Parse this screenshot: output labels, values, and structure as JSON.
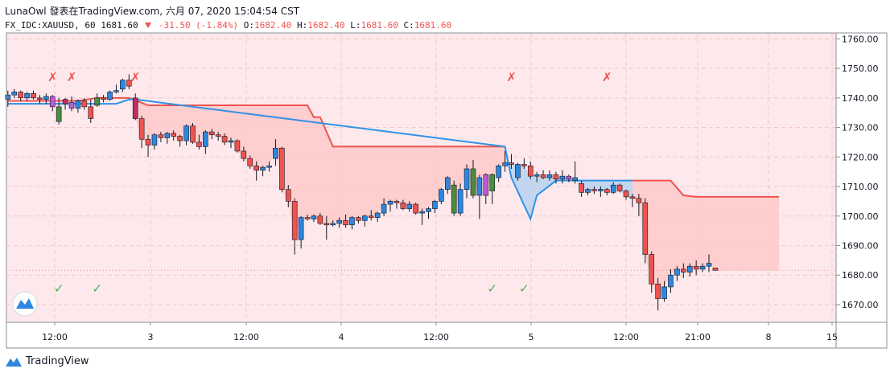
{
  "header": {
    "line1": "LunaOwl 發表在TradingView.com, 六月 07, 2020 15:04:54 CST",
    "symbol": "FX_IDC:XAUUSD, 60",
    "last": "1681.60",
    "change": "-31.50 (-1.84%)",
    "o_label": "O:",
    "o_value": "1682.40",
    "h_label": "H:",
    "h_value": "1682.40",
    "l_label": "L:",
    "l_value": "1681.60",
    "c_label": "C:",
    "c_value": "1681.60"
  },
  "footer": {
    "brand": "TradingView"
  },
  "colors": {
    "up": "#2d87e0",
    "down": "#ef5350",
    "signal_up": "#4c8c40",
    "signal_down": "#c22d62",
    "purple": "#c05ad4",
    "cloud_bear": "#ffc9c9",
    "cloud_bull": "#b8d2f0",
    "line_red": "#ef5350",
    "line_blue": "#2f92e6",
    "bg": "#fde9ec"
  },
  "chart_data": {
    "type": "candlestick",
    "ylim": [
      1664,
      1762
    ],
    "y_ticks": [
      "1760.00",
      "1750.00",
      "1740.00",
      "1730.00",
      "1720.00",
      "1710.00",
      "1700.00",
      "1690.00",
      "1680.00",
      "1670.00"
    ],
    "x_ticks": [
      "12:00",
      "3",
      "12:00",
      "4",
      "12:00",
      "5",
      "12:00",
      "21:00",
      "8",
      "15"
    ],
    "candles": [
      [
        1739.5,
        1742.5,
        1737.0,
        1741.0
      ],
      [
        1741.0,
        1743.0,
        1740.0,
        1742.0
      ],
      [
        1742.0,
        1742.5,
        1739.0,
        1740.0
      ],
      [
        1740.0,
        1742.0,
        1739.0,
        1741.5
      ],
      [
        1741.5,
        1742.5,
        1739.5,
        1740.0
      ],
      [
        1740.0,
        1741.0,
        1738.0,
        1739.5
      ],
      [
        1739.5,
        1741.5,
        1738.0,
        1740.5
      ],
      [
        1740.5,
        1741.0,
        1735.5,
        1737.0
      ],
      [
        1737.0,
        1740.0,
        1731.0,
        1732.0
      ],
      [
        1738.0,
        1740.0,
        1736.0,
        1739.5
      ],
      [
        1738.5,
        1740.5,
        1735.5,
        1736.5
      ],
      [
        1736.5,
        1739.5,
        1735.0,
        1739.0
      ],
      [
        1739.0,
        1740.0,
        1736.0,
        1737.0
      ],
      [
        1737.0,
        1739.5,
        1731.5,
        1733.0
      ],
      [
        1737.5,
        1741.5,
        1737.0,
        1740.0
      ],
      [
        1740.0,
        1741.0,
        1738.5,
        1739.5
      ],
      [
        1739.5,
        1742.5,
        1739.0,
        1742.0
      ],
      [
        1742.0,
        1744.5,
        1741.5,
        1742.5
      ],
      [
        1743.0,
        1746.5,
        1742.0,
        1746.0
      ],
      [
        1746.0,
        1748.0,
        1743.0,
        1744.0
      ],
      [
        1740.0,
        1741.5,
        1732.5,
        1733.0
      ],
      [
        1733.0,
        1734.0,
        1723.0,
        1726.0
      ],
      [
        1726.0,
        1727.5,
        1720.0,
        1724.0
      ],
      [
        1724.0,
        1728.0,
        1722.5,
        1727.5
      ],
      [
        1727.5,
        1728.5,
        1725.0,
        1726.5
      ],
      [
        1726.5,
        1728.5,
        1724.5,
        1728.0
      ],
      [
        1728.0,
        1729.0,
        1725.5,
        1727.0
      ],
      [
        1727.0,
        1727.5,
        1723.5,
        1725.5
      ],
      [
        1725.5,
        1731.0,
        1724.0,
        1730.5
      ],
      [
        1730.5,
        1731.5,
        1724.5,
        1725.0
      ],
      [
        1725.0,
        1727.5,
        1722.5,
        1723.5
      ],
      [
        1723.5,
        1729.0,
        1721.0,
        1728.5
      ],
      [
        1728.5,
        1729.5,
        1726.0,
        1727.5
      ],
      [
        1727.5,
        1728.5,
        1725.5,
        1727.0
      ],
      [
        1727.0,
        1728.0,
        1724.0,
        1725.0
      ],
      [
        1725.0,
        1726.5,
        1723.0,
        1725.5
      ],
      [
        1725.5,
        1726.0,
        1721.5,
        1722.0
      ],
      [
        1722.0,
        1723.5,
        1718.5,
        1719.5
      ],
      [
        1719.5,
        1720.5,
        1716.0,
        1717.0
      ],
      [
        1717.0,
        1718.5,
        1712.0,
        1715.5
      ],
      [
        1715.5,
        1717.0,
        1713.5,
        1716.5
      ],
      [
        1716.5,
        1718.5,
        1715.0,
        1717.0
      ],
      [
        1719.5,
        1726.0,
        1717.0,
        1723.0
      ],
      [
        1723.0,
        1723.5,
        1708.0,
        1709.0
      ],
      [
        1709.0,
        1710.5,
        1703.0,
        1705.0
      ],
      [
        1705.0,
        1706.0,
        1687.0,
        1692.0
      ],
      [
        1692.0,
        1700.0,
        1689.0,
        1699.5
      ],
      [
        1699.5,
        1700.5,
        1698.5,
        1699.0
      ],
      [
        1699.0,
        1700.5,
        1698.0,
        1700.0
      ],
      [
        1700.0,
        1701.0,
        1697.0,
        1697.5
      ],
      [
        1697.5,
        1700.0,
        1692.0,
        1697.0
      ],
      [
        1697.0,
        1698.5,
        1696.5,
        1697.5
      ],
      [
        1697.5,
        1699.5,
        1696.0,
        1698.5
      ],
      [
        1698.5,
        1700.5,
        1696.0,
        1697.0
      ],
      [
        1697.0,
        1700.0,
        1695.5,
        1699.5
      ],
      [
        1699.5,
        1700.0,
        1697.5,
        1698.5
      ],
      [
        1698.5,
        1700.5,
        1696.5,
        1700.0
      ],
      [
        1700.0,
        1702.0,
        1698.5,
        1699.5
      ],
      [
        1699.5,
        1701.5,
        1698.0,
        1701.0
      ],
      [
        1701.0,
        1706.0,
        1700.0,
        1704.0
      ],
      [
        1704.0,
        1705.5,
        1701.5,
        1705.0
      ],
      [
        1705.0,
        1705.5,
        1702.5,
        1704.5
      ],
      [
        1704.5,
        1705.5,
        1702.0,
        1702.5
      ],
      [
        1702.5,
        1705.0,
        1701.5,
        1704.0
      ],
      [
        1704.0,
        1704.5,
        1700.5,
        1701.0
      ],
      [
        1701.0,
        1702.5,
        1697.0,
        1701.5
      ],
      [
        1701.5,
        1703.0,
        1699.0,
        1702.5
      ],
      [
        1702.5,
        1705.5,
        1701.0,
        1705.0
      ],
      [
        1705.0,
        1709.5,
        1704.0,
        1709.0
      ],
      [
        1709.0,
        1713.5,
        1707.5,
        1713.0
      ],
      [
        1710.5,
        1712.0,
        1700.0,
        1701.0
      ],
      [
        1701.0,
        1711.0,
        1700.0,
        1709.0
      ],
      [
        1709.0,
        1717.5,
        1706.0,
        1716.0
      ],
      [
        1716.0,
        1719.0,
        1706.0,
        1707.0
      ],
      [
        1707.0,
        1714.0,
        1699.0,
        1713.0
      ],
      [
        1707.0,
        1714.5,
        1704.0,
        1714.0
      ],
      [
        1714.0,
        1714.5,
        1704.0,
        1708.5
      ],
      [
        1713.0,
        1717.5,
        1711.5,
        1717.0
      ],
      [
        1717.0,
        1722.0,
        1715.0,
        1718.0
      ],
      [
        1718.0,
        1721.0,
        1716.0,
        1717.5
      ],
      [
        1713.0,
        1718.0,
        1712.0,
        1717.5
      ],
      [
        1717.5,
        1719.5,
        1716.0,
        1717.0
      ],
      [
        1717.0,
        1718.5,
        1712.5,
        1713.5
      ],
      [
        1713.5,
        1715.0,
        1711.5,
        1714.0
      ],
      [
        1714.0,
        1715.5,
        1712.5,
        1713.0
      ],
      [
        1713.0,
        1715.5,
        1712.0,
        1714.0
      ],
      [
        1714.0,
        1715.0,
        1711.0,
        1712.5
      ],
      [
        1712.5,
        1715.5,
        1711.0,
        1713.5
      ],
      [
        1713.5,
        1714.0,
        1711.5,
        1712.5
      ],
      [
        1712.0,
        1718.5,
        1711.0,
        1713.0
      ],
      [
        1711.0,
        1712.0,
        1706.5,
        1708.0
      ],
      [
        1708.0,
        1709.5,
        1707.0,
        1709.0
      ],
      [
        1709.0,
        1710.0,
        1707.5,
        1708.5
      ],
      [
        1708.5,
        1710.0,
        1706.5,
        1709.0
      ],
      [
        1709.0,
        1709.5,
        1707.0,
        1708.0
      ],
      [
        1708.0,
        1711.5,
        1707.5,
        1710.5
      ],
      [
        1710.5,
        1711.0,
        1708.0,
        1708.5
      ],
      [
        1708.5,
        1709.0,
        1705.5,
        1706.5
      ],
      [
        1706.5,
        1707.5,
        1703.0,
        1706.0
      ],
      [
        1706.0,
        1707.5,
        1700.0,
        1704.5
      ],
      [
        1704.5,
        1706.0,
        1684.0,
        1687.0
      ],
      [
        1687.0,
        1688.0,
        1674.0,
        1677.0
      ],
      [
        1677.0,
        1679.0,
        1668.0,
        1672.0
      ],
      [
        1672.0,
        1678.0,
        1671.0,
        1676.0
      ],
      [
        1676.0,
        1682.0,
        1674.0,
        1680.0
      ],
      [
        1680.0,
        1683.0,
        1678.0,
        1682.0
      ],
      [
        1682.0,
        1684.0,
        1679.0,
        1681.0
      ],
      [
        1681.0,
        1684.0,
        1679.5,
        1683.0
      ],
      [
        1683.0,
        1685.0,
        1680.0,
        1682.0
      ],
      [
        1682.0,
        1684.0,
        1681.0,
        1683.0
      ],
      [
        1683.0,
        1687.0,
        1681.0,
        1684.0
      ],
      [
        1682.4,
        1682.4,
        1681.6,
        1681.6
      ]
    ],
    "special": {
      "7": "purple",
      "8": "signal_up",
      "9": "signal_down",
      "10": "purple",
      "14": "signal_up",
      "20": "signal_down",
      "70": "signal_up",
      "73": "signal_up",
      "75": "purple",
      "76": "signal_up",
      "88": "purple"
    },
    "trail_red": [
      [
        0,
        1739
      ],
      [
        11,
        1739
      ],
      [
        14,
        1740
      ],
      [
        19,
        1740
      ],
      [
        22,
        1737.5
      ],
      [
        47,
        1737.5
      ],
      [
        48,
        1733.5
      ],
      [
        49,
        1733.5
      ],
      [
        51,
        1723.5
      ],
      [
        78,
        1723.5
      ]
    ],
    "trail_blue": [
      [
        0,
        1738
      ],
      [
        17,
        1738
      ],
      [
        19,
        1739.5
      ],
      [
        20,
        1739.5
      ],
      [
        78,
        1723.5
      ],
      [
        79,
        1713
      ],
      [
        82,
        1699
      ],
      [
        83,
        1707
      ],
      [
        86,
        1712
      ],
      [
        90,
        1712
      ],
      [
        98,
        1712
      ]
    ],
    "trail_red2": [
      [
        98,
        1712
      ],
      [
        104,
        1712
      ],
      [
        106,
        1707
      ],
      [
        108,
        1706.5
      ],
      [
        121,
        1706.5
      ]
    ],
    "sell_markers": [
      [
        7,
        "✗"
      ],
      [
        10,
        "✗"
      ],
      [
        20,
        "✗"
      ],
      [
        79,
        "✗"
      ],
      [
        94,
        "✗"
      ]
    ],
    "buy_markers": [
      [
        8,
        "✓"
      ],
      [
        14,
        "✓"
      ],
      [
        76,
        "✓"
      ],
      [
        81,
        "✓"
      ]
    ]
  }
}
